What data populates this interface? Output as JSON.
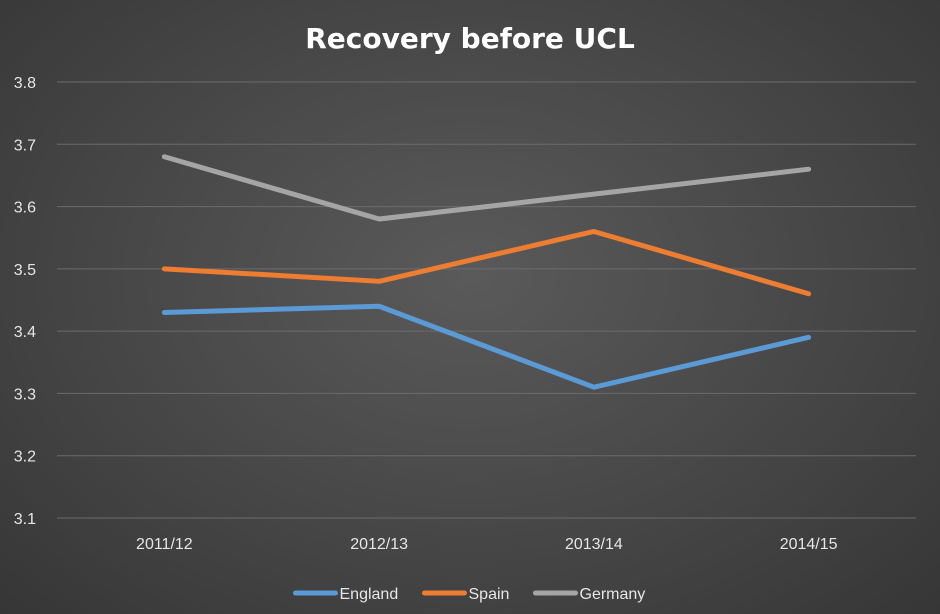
{
  "chart_data": {
    "type": "line",
    "title": "Recovery before UCL",
    "xlabel": "",
    "ylabel": "",
    "categories": [
      "2011/12",
      "2012/13",
      "2013/14",
      "2014/15"
    ],
    "ylim": [
      3.1,
      3.8
    ],
    "yticks": [
      "3.1",
      "3.2",
      "3.3",
      "3.4",
      "3.5",
      "3.6",
      "3.7",
      "3.8"
    ],
    "grid": true,
    "legend_position": "bottom",
    "series": [
      {
        "name": "England",
        "color": "#5b9bd5",
        "values": [
          3.43,
          3.44,
          3.31,
          3.39
        ]
      },
      {
        "name": "Spain",
        "color": "#ed7d31",
        "values": [
          3.5,
          3.48,
          3.56,
          3.46
        ]
      },
      {
        "name": "Germany",
        "color": "#a5a5a5",
        "values": [
          3.68,
          3.58,
          3.62,
          3.66
        ]
      }
    ]
  }
}
